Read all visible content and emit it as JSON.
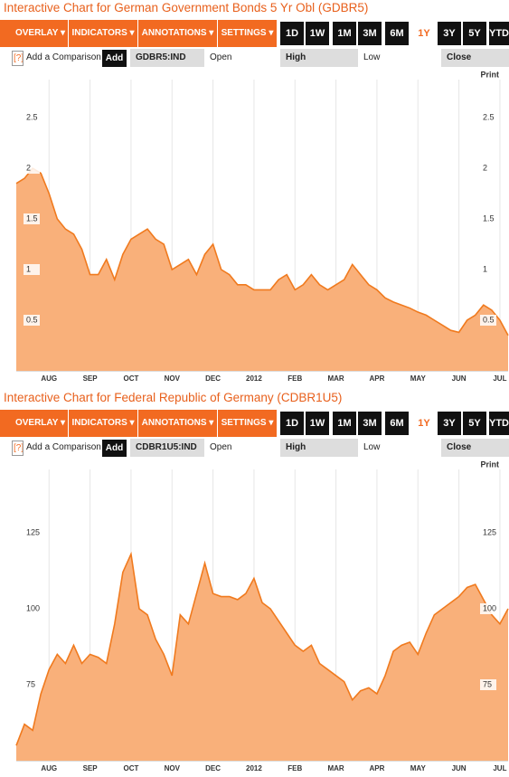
{
  "panels": [
    {
      "title": "Interactive Chart for German Government Bonds 5 Yr Obl (GDBR5)",
      "ticker": "GDBR5:IND"
    },
    {
      "title": "Interactive Chart for Federal Republic of Germany (CDBR1U5)",
      "ticker": "CDBR1U5:IND"
    }
  ],
  "menu": [
    "OVERLAY ▾",
    "INDICATORS ▾",
    "ANNOTATIONS ▾",
    "SETTINGS ▾"
  ],
  "ranges": [
    "1D",
    "1W",
    "1M",
    "3M",
    "6M",
    "1Y",
    "3Y",
    "5Y",
    "YTD"
  ],
  "active_range": "1Y",
  "help": "[?]",
  "compare": "Add a Comparison",
  "add": "Add",
  "fields": [
    "Open",
    "High",
    "Low",
    "Close"
  ],
  "print": "Print",
  "chart_data": [
    {
      "type": "area",
      "color": "#f07a1e",
      "fill": "#f9b07a",
      "grid": true,
      "categories": [
        null,
        null,
        null,
        null,
        "AUG",
        null,
        null,
        null,
        null,
        "SEP",
        null,
        null,
        null,
        null,
        "OCT",
        null,
        null,
        null,
        null,
        "NOV",
        null,
        null,
        null,
        null,
        "DEC",
        null,
        null,
        null,
        null,
        "2012",
        null,
        null,
        null,
        null,
        "FEB",
        null,
        null,
        null,
        null,
        "MAR",
        null,
        null,
        null,
        null,
        "APR",
        null,
        null,
        null,
        null,
        "MAY",
        null,
        null,
        null,
        null,
        "JUN",
        null,
        null,
        null,
        null,
        "JUL",
        null
      ],
      "values": [
        1.85,
        1.9,
        2.0,
        1.95,
        1.75,
        1.5,
        1.4,
        1.35,
        1.2,
        0.95,
        0.95,
        1.1,
        0.9,
        1.15,
        1.3,
        1.35,
        1.4,
        1.3,
        1.25,
        1.0,
        1.05,
        1.1,
        0.95,
        1.15,
        1.25,
        1.0,
        0.95,
        0.85,
        0.85,
        0.8,
        0.8,
        0.8,
        0.9,
        0.95,
        0.8,
        0.85,
        0.95,
        0.85,
        0.8,
        0.85,
        0.9,
        1.05,
        0.95,
        0.85,
        0.8,
        0.72,
        0.68,
        0.65,
        0.62,
        0.58,
        0.55,
        0.5,
        0.45,
        0.4,
        0.38,
        0.5,
        0.55,
        0.65,
        0.6,
        0.5,
        0.35
      ],
      "ylim": [
        0,
        3
      ],
      "yticks": [
        0.5,
        1,
        1.5,
        2,
        2.5
      ]
    },
    {
      "type": "area",
      "color": "#f07a1e",
      "fill": "#f9b07a",
      "grid": true,
      "categories": [
        null,
        null,
        null,
        null,
        "AUG",
        null,
        null,
        null,
        null,
        "SEP",
        null,
        null,
        null,
        null,
        "OCT",
        null,
        null,
        null,
        null,
        "NOV",
        null,
        null,
        null,
        null,
        "DEC",
        null,
        null,
        null,
        null,
        "2012",
        null,
        null,
        null,
        null,
        "FEB",
        null,
        null,
        null,
        null,
        "MAR",
        null,
        null,
        null,
        null,
        "APR",
        null,
        null,
        null,
        null,
        "MAY",
        null,
        null,
        null,
        null,
        "JUN",
        null,
        null,
        null,
        null,
        "JUL",
        null
      ],
      "values": [
        55,
        62,
        60,
        72,
        80,
        85,
        82,
        88,
        82,
        85,
        84,
        82,
        95,
        112,
        118,
        100,
        98,
        90,
        85,
        78,
        98,
        95,
        105,
        115,
        105,
        104,
        104,
        103,
        105,
        110,
        102,
        100,
        96,
        92,
        88,
        86,
        88,
        82,
        80,
        78,
        76,
        70,
        73,
        74,
        72,
        78,
        86,
        88,
        89,
        85,
        92,
        98,
        100,
        102,
        104,
        107,
        108,
        103,
        98,
        95,
        100
      ],
      "ylim": [
        50,
        150
      ],
      "yticks": [
        75,
        100,
        125
      ]
    }
  ]
}
